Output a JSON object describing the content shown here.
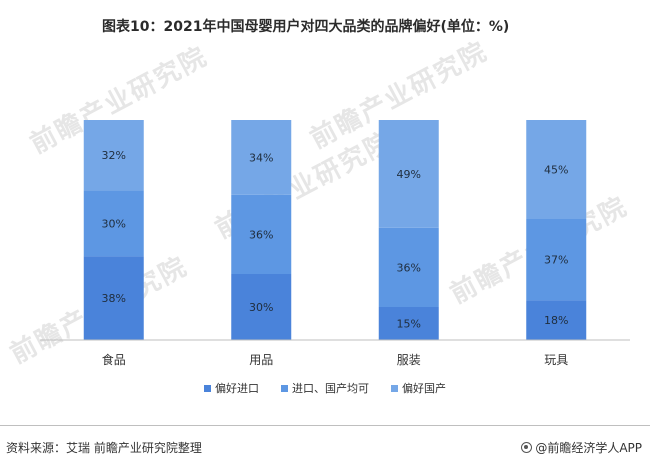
{
  "title": "图表10：2021年中国母婴用户对四大品类的品牌偏好(单位：%)",
  "watermark": "前瞻产业研究院",
  "colors": {
    "series": [
      "#4a83da",
      "#5d97e3",
      "#75a7e7"
    ]
  },
  "chart_data": {
    "type": "bar",
    "stacked": true,
    "categories": [
      "食品",
      "用品",
      "服装",
      "玩具"
    ],
    "series": [
      {
        "name": "偏好进口",
        "values": [
          38,
          30,
          15,
          18
        ],
        "labels": [
          "38%",
          "30%",
          "15%",
          "18%"
        ]
      },
      {
        "name": "进口、国产均可",
        "values": [
          30,
          36,
          36,
          37
        ],
        "labels": [
          "30%",
          "36%",
          "36%",
          "37%"
        ]
      },
      {
        "name": "偏好国产",
        "values": [
          32,
          34,
          49,
          45
        ],
        "labels": [
          "32%",
          "34%",
          "49%",
          "45%"
        ]
      }
    ],
    "ylim": [
      0,
      100
    ],
    "grid": false,
    "legend": "bottom"
  },
  "footer": {
    "source": "资料来源：艾瑞 前瞻产业研究院整理",
    "brand": "@前瞻经济学人APP",
    "brand_icon": "circle-logo-icon"
  }
}
